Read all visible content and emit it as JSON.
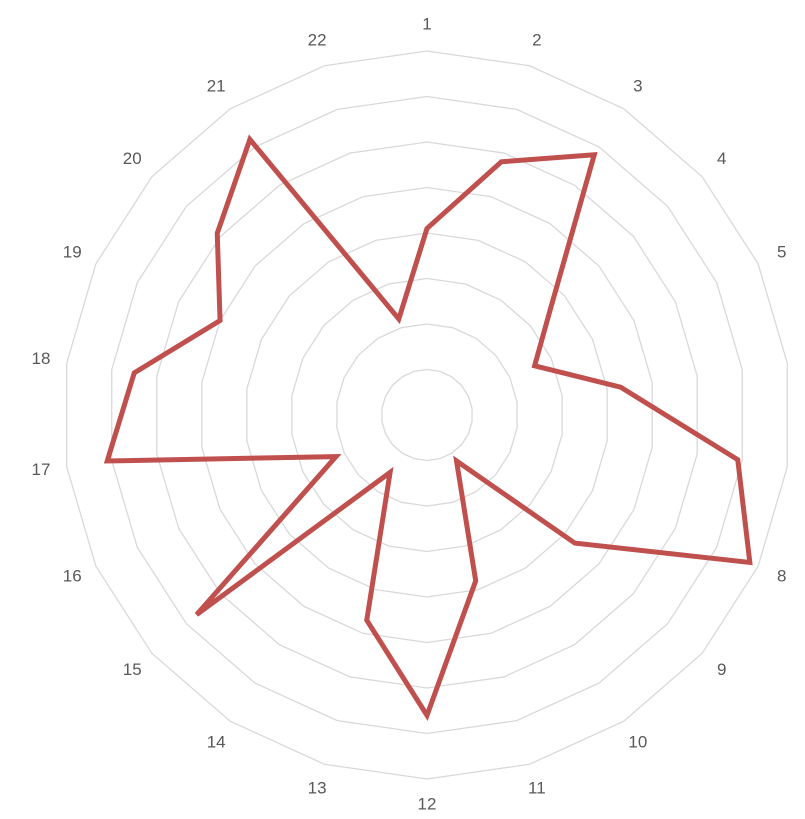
{
  "chart_data": {
    "type": "radar",
    "categories": [
      "1",
      "2",
      "3",
      "4",
      "5",
      "6",
      "7",
      "8",
      "9",
      "10",
      "11",
      "12",
      "13",
      "14",
      "15",
      "16",
      "17",
      "18",
      "19",
      "20",
      "21",
      "22"
    ],
    "series": [
      {
        "color": "#c0504d",
        "values": [
          4.1,
          5.8,
          6.8,
          3.6,
          2.6,
          4.3,
          6.9,
          7.8,
          4.3,
          1.2,
          3.8,
          6.6,
          4.7,
          1.5,
          6.7,
          2.2,
          7.1,
          6.5,
          5.0,
          6.1,
          7.2,
          2.2
        ]
      }
    ],
    "ylim": [
      0,
      8
    ],
    "yticks": [
      0,
      1,
      2,
      3,
      4,
      5,
      6,
      7,
      8
    ],
    "grid": true
  }
}
